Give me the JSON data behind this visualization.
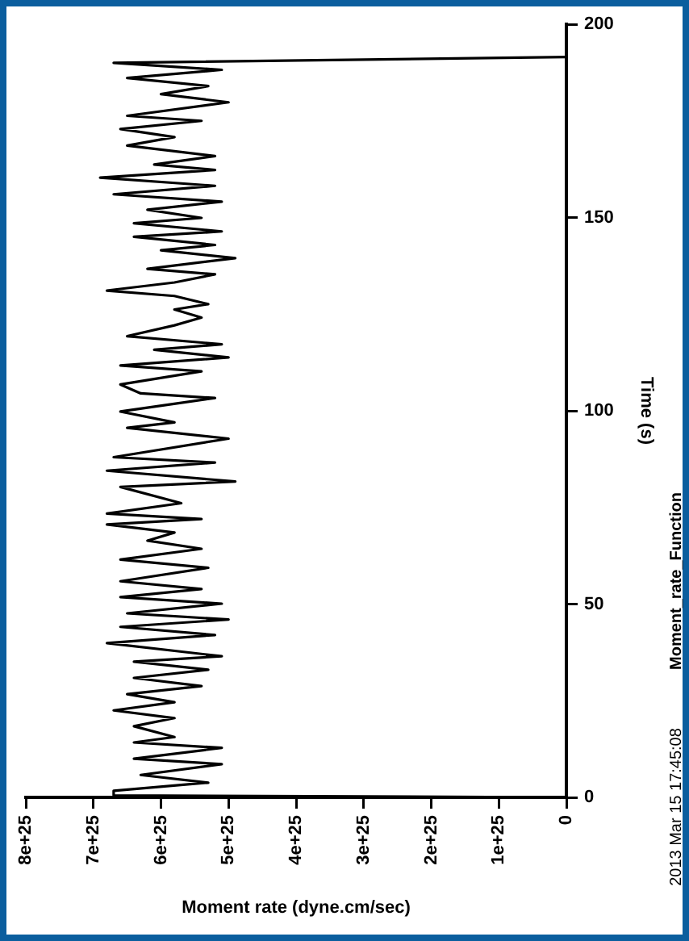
{
  "chart_data": {
    "type": "line",
    "xlabel": "Moment rate (dyne.cm/sec)",
    "ylabel": "Time (s)",
    "annotations": [
      "Moment_rate_Function",
      "2013 Mar 15 17:45:08"
    ],
    "x": [
      0,
      6.7e+25,
      6.7e+25,
      5.3e+25,
      6.3e+25,
      5.1e+25,
      6.4e+25,
      5.1e+25,
      6.4e+25,
      5.8e+25,
      6.4e+25,
      5.8e+25,
      6.7e+25,
      5.8e+25,
      6.5e+25,
      5.4e+25,
      6.4e+25,
      5.3e+25,
      6.4e+25,
      5.1e+25,
      6.8e+25,
      5.2e+25,
      6.6e+25,
      5e+25,
      6.5e+25,
      5.1e+25,
      6.6e+25,
      5.4e+25,
      6.6e+25,
      5.3e+25,
      6.6e+25,
      5.4e+25,
      6.2e+25,
      5.8e+25,
      6.8e+25,
      5.4e+25,
      6.8e+25,
      5.7e+25,
      6.6e+25,
      4.9e+25,
      6.8e+25,
      5.2e+25,
      6.7e+25,
      5e+25,
      6.5e+25,
      5.8e+25,
      6.6e+25,
      5.2e+25,
      6.3e+25,
      6.6e+25,
      5.4e+25,
      6.6e+25,
      5e+25,
      6.1e+25,
      5.1e+25,
      6.5e+25,
      5.8e+25,
      5.4e+25,
      5.8e+25,
      5.3e+25,
      5.8e+25,
      6.8e+25,
      5.8e+25,
      5.2e+25,
      6.2e+25,
      4.9e+25,
      6e+25,
      5.2e+25,
      6.4e+25,
      5.1e+25,
      6.4e+25,
      5.4e+25,
      6.2e+25,
      5.1e+25,
      6.7e+25,
      5.2e+25,
      6.9e+25,
      5.2e+25,
      6.1e+25,
      5.2e+25,
      6.5e+25,
      5.8e+25,
      6.6e+25,
      5.4e+25,
      6.5e+25,
      5e+25,
      6e+25,
      5.3e+25,
      6.5e+25,
      5.1e+25,
      6.7e+25,
      0
    ],
    "series": [
      {
        "color": "#000000",
        "values": [
          0,
          0.5,
          1.7,
          3.8,
          5.8,
          8.6,
          10,
          12.8,
          14.2,
          15.6,
          18.4,
          20.5,
          22.5,
          24.6,
          26.7,
          28.8,
          30.9,
          33,
          35.1,
          36.5,
          39.9,
          42,
          44.1,
          46,
          47.6,
          50.1,
          51.8,
          53.9,
          55.9,
          59.4,
          61.5,
          64.3,
          66.4,
          68.5,
          70.6,
          72,
          73.4,
          76.1,
          80.3,
          81.7,
          84.5,
          86.6,
          88,
          92.8,
          95.6,
          97,
          99.8,
          103.3,
          104.5,
          106.8,
          110.2,
          111.7,
          113.8,
          115.8,
          117.2,
          119.3,
          122.1,
          124.1,
          126.2,
          127.6,
          129.7,
          131.1,
          133.2,
          135.3,
          136.7,
          139.5,
          141.5,
          142.9,
          145,
          146.4,
          148.5,
          149.9,
          152,
          154.1,
          156,
          158.2,
          160.3,
          162.3,
          163.7,
          165.9,
          168.6,
          170.8,
          172.9,
          175,
          176.3,
          179.8,
          181.9,
          184,
          186.1,
          188.2,
          190,
          191.5
        ]
      }
    ],
    "xlim": [
      8e+25,
      0
    ],
    "xticks": [
      {
        "value": 8e+25,
        "label": "8e+25"
      },
      {
        "value": 7e+25,
        "label": "7e+25"
      },
      {
        "value": 6e+25,
        "label": "6e+25"
      },
      {
        "value": 5e+25,
        "label": "5e+25"
      },
      {
        "value": 4e+25,
        "label": "4e+25"
      },
      {
        "value": 3e+25,
        "label": "3e+25"
      },
      {
        "value": 2e+25,
        "label": "2e+25"
      },
      {
        "value": 1e+25,
        "label": "1e+25"
      },
      0
    ],
    "ylim": [
      0,
      200
    ],
    "yticks": [
      0,
      50,
      100,
      150,
      200
    ],
    "grid": false,
    "legend": false,
    "marker": "none",
    "line_style": "solid"
  }
}
